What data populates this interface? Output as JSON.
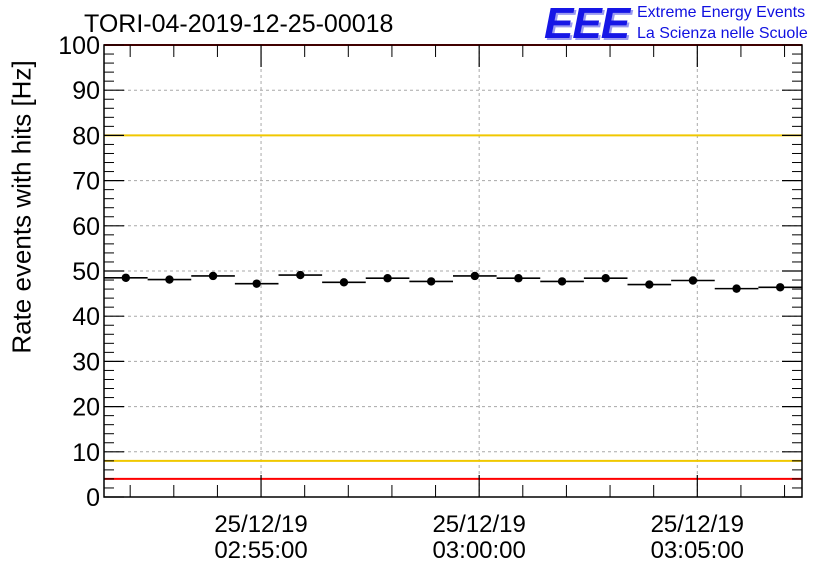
{
  "header": {
    "title": "TORI-04-2019-12-25-00018",
    "logo_mark": "EEE",
    "logo_line1": "Extreme Energy Events",
    "logo_line2": "La Scienza nelle Scuole"
  },
  "chart_data": {
    "type": "scatter",
    "title": "TORI-04-2019-12-25-00018",
    "xlabel": "",
    "ylabel": "Rate events with hits [Hz]",
    "ylim": [
      0,
      100
    ],
    "xlim_minutes": [
      -3.6,
      12.4
    ],
    "x_unit": "minutes after 25/12/19 02:55:00",
    "yticks": [
      0,
      10,
      20,
      30,
      40,
      50,
      60,
      70,
      80,
      90,
      100
    ],
    "xticks": [
      {
        "value": 0,
        "date": "25/12/19",
        "time": "02:55:00"
      },
      {
        "value": 5,
        "date": "25/12/19",
        "time": "03:00:00"
      },
      {
        "value": 10,
        "date": "25/12/19",
        "time": "03:05:00"
      }
    ],
    "grid": true,
    "bin_width_minutes": 1,
    "series": [
      {
        "name": "rate",
        "x": [
          -3.1,
          -2.1,
          -1.1,
          -0.1,
          0.9,
          1.9,
          2.9,
          3.9,
          4.9,
          5.9,
          6.9,
          7.9,
          8.9,
          9.9,
          10.9,
          11.9
        ],
        "y": [
          48.5,
          48.1,
          48.9,
          47.2,
          49.1,
          47.5,
          48.4,
          47.7,
          48.9,
          48.4,
          47.7,
          48.4,
          47.0,
          47.9,
          46.1,
          46.4
        ]
      }
    ],
    "reference_lines": [
      {
        "y": 100,
        "color": "#ff0000"
      },
      {
        "y": 80,
        "color": "#f0c800"
      },
      {
        "y": 8,
        "color": "#f0c800"
      },
      {
        "y": 4,
        "color": "#ff0000"
      }
    ]
  }
}
